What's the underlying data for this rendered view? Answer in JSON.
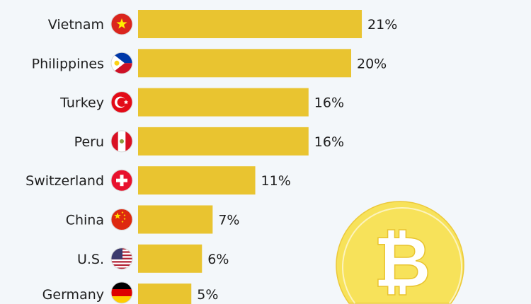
{
  "chart_data": {
    "type": "bar",
    "orientation": "horizontal",
    "categories": [
      "Vietnam",
      "Philippines",
      "Turkey",
      "Peru",
      "Switzerland",
      "China",
      "U.S.",
      "Germany"
    ],
    "values": [
      21,
      20,
      16,
      16,
      11,
      7,
      6,
      5
    ],
    "value_labels": [
      "21%",
      "20%",
      "16%",
      "16%",
      "11%",
      "7%",
      "6%",
      "5%"
    ],
    "flags": [
      "vietnam-flag-icon",
      "philippines-flag-icon",
      "turkey-flag-icon",
      "peru-flag-icon",
      "switzerland-flag-icon",
      "china-flag-icon",
      "us-flag-icon",
      "germany-flag-icon"
    ],
    "bar_color": "#e9c430",
    "background": "#f3f7fa",
    "grid": false,
    "decoration": "bitcoin-coin-icon"
  }
}
